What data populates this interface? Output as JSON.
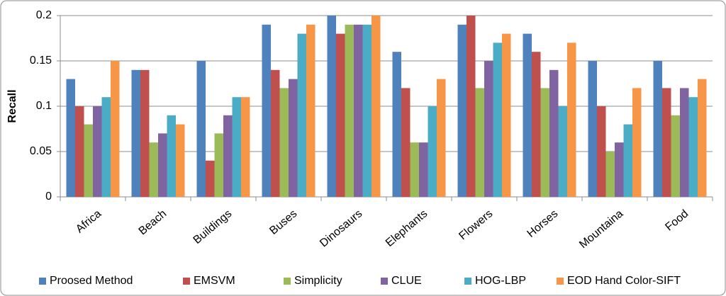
{
  "chart_data": {
    "type": "bar",
    "y_label": "Recall",
    "categories": [
      "Africa",
      "Beach",
      "Buildings",
      "Buses",
      "Dinosaurs",
      "Elephants",
      "Flowers",
      "Horses",
      "Mountaina",
      "Food"
    ],
    "series": [
      {
        "name": "Proosed Method",
        "color": "#4f81bd",
        "values": [
          0.13,
          0.14,
          0.15,
          0.19,
          0.2,
          0.16,
          0.19,
          0.18,
          0.15,
          0.15
        ]
      },
      {
        "name": "EMSVM",
        "color": "#c0504d",
        "values": [
          0.1,
          0.14,
          0.04,
          0.14,
          0.18,
          0.12,
          0.2,
          0.16,
          0.1,
          0.12
        ]
      },
      {
        "name": "Simplicity",
        "color": "#9bbb59",
        "values": [
          0.08,
          0.06,
          0.07,
          0.12,
          0.19,
          0.06,
          0.12,
          0.12,
          0.05,
          0.09
        ]
      },
      {
        "name": "CLUE",
        "color": "#8064a2",
        "values": [
          0.1,
          0.07,
          0.09,
          0.13,
          0.19,
          0.06,
          0.15,
          0.14,
          0.06,
          0.12
        ]
      },
      {
        "name": "HOG-LBP",
        "color": "#4bacc6",
        "values": [
          0.11,
          0.09,
          0.11,
          0.18,
          0.19,
          0.1,
          0.17,
          0.1,
          0.08,
          0.11
        ]
      },
      {
        "name": "EOD Hand Color-SIFT",
        "color": "#f79646",
        "values": [
          0.15,
          0.08,
          0.11,
          0.19,
          0.2,
          0.13,
          0.18,
          0.17,
          0.12,
          0.13
        ]
      }
    ],
    "ylim": [
      0,
      0.2
    ],
    "yticks": [
      0,
      0.05,
      0.1,
      0.15,
      0.2
    ],
    "grid": true,
    "legend": "bottom"
  }
}
